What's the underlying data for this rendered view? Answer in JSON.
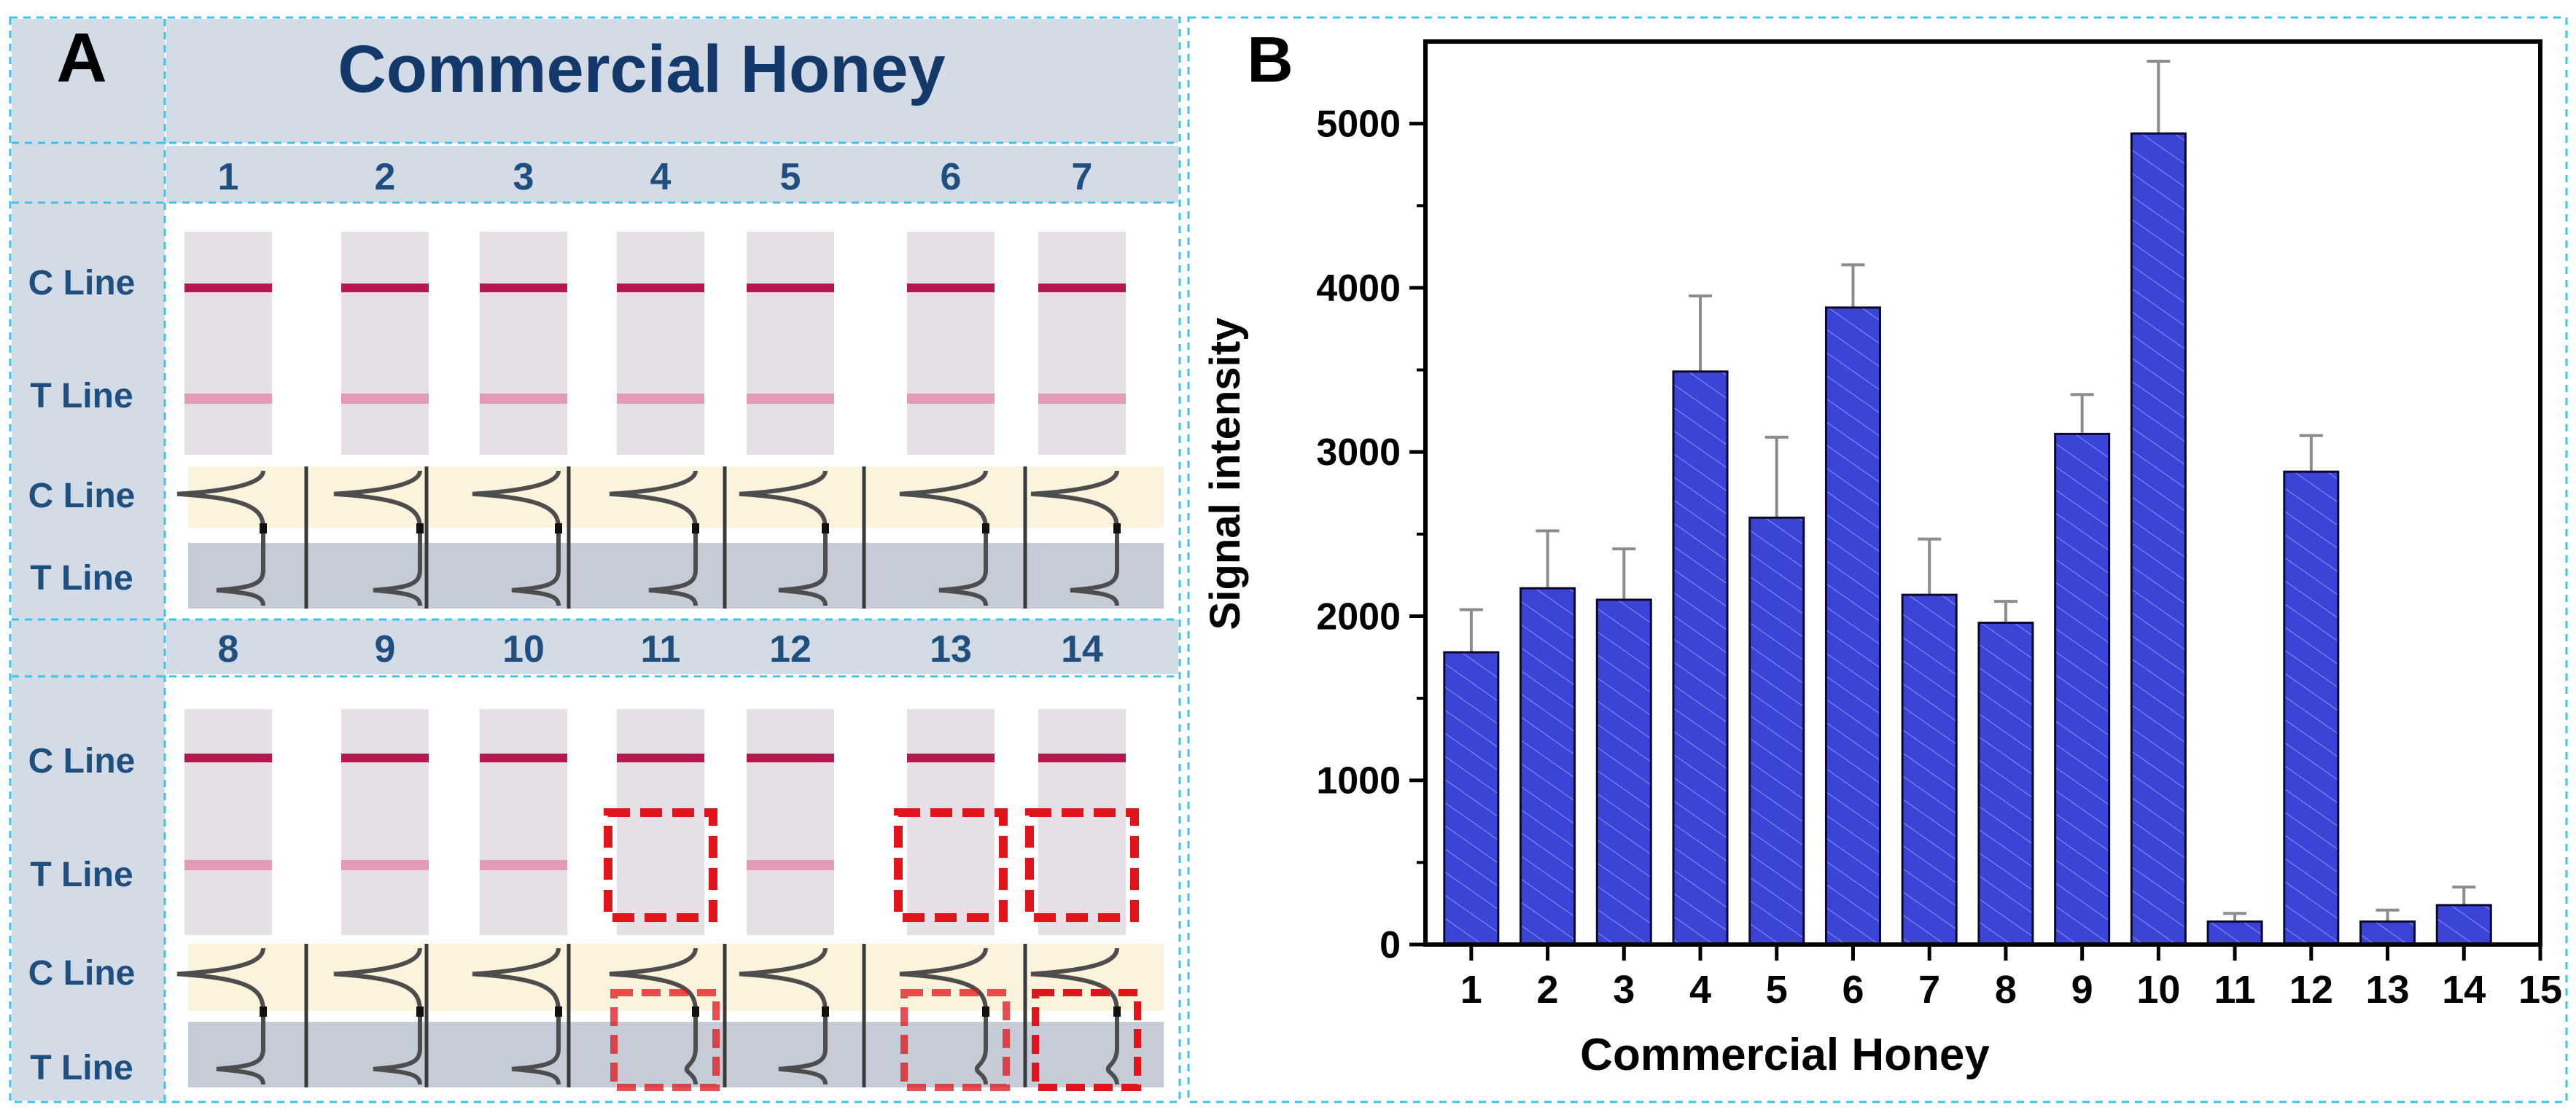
{
  "panel_a": {
    "letter": "A",
    "title": "Commercial Honey",
    "row_labels": {
      "c_line": "C Line",
      "t_line": "T Line"
    },
    "top_group": {
      "samples": [
        "1",
        "2",
        "3",
        "4",
        "5",
        "6",
        "7"
      ],
      "t_line_visible": [
        true,
        true,
        true,
        true,
        true,
        true,
        true
      ],
      "highlighted": [
        false,
        false,
        false,
        false,
        false,
        false,
        false
      ]
    },
    "bottom_group": {
      "samples": [
        "8",
        "9",
        "10",
        "11",
        "12",
        "13",
        "14"
      ],
      "t_line_visible": [
        true,
        true,
        true,
        false,
        true,
        false,
        false
      ],
      "highlighted": [
        false,
        false,
        false,
        true,
        false,
        true,
        true
      ]
    },
    "colors": {
      "header_bg": "#d3dbe6",
      "title_text": "#13396b",
      "label_text": "#1f4f7e",
      "c_band": "#b5174f",
      "t_band": "#e39ab9",
      "strip_bg": "#e6dfe5",
      "c_curve_bg": "#fbf3dc",
      "t_curve_bg": "#c6ccd7",
      "curve_stroke": "#4d4d4d",
      "highlight_box": "#e0141a",
      "dashed_border": "#3cc4e6"
    }
  },
  "panel_b": {
    "letter": "B"
  },
  "chart_data": {
    "type": "bar",
    "categories": [
      "1",
      "2",
      "3",
      "4",
      "5",
      "6",
      "7",
      "8",
      "9",
      "10",
      "11",
      "12",
      "13",
      "14"
    ],
    "values": [
      1780,
      2170,
      2100,
      3490,
      2600,
      3880,
      2130,
      1960,
      3110,
      4940,
      140,
      2880,
      140,
      240
    ],
    "errors": [
      260,
      350,
      310,
      460,
      490,
      260,
      340,
      130,
      240,
      440,
      50,
      220,
      70,
      110
    ],
    "xlabel": "Commercial Honey",
    "ylabel": "Signal intensity",
    "xlim": [
      0.4,
      15
    ],
    "ylim": [
      0,
      5500
    ],
    "x_ticks": [
      1,
      2,
      3,
      4,
      5,
      6,
      7,
      8,
      9,
      10,
      11,
      12,
      13,
      14,
      15
    ],
    "y_ticks": [
      0,
      1000,
      2000,
      3000,
      4000,
      5000
    ],
    "grid": false,
    "bar_color": "#3b44d6",
    "bar_color_dark": "#262fb0",
    "error_bar_color": "#8c8c8c"
  }
}
